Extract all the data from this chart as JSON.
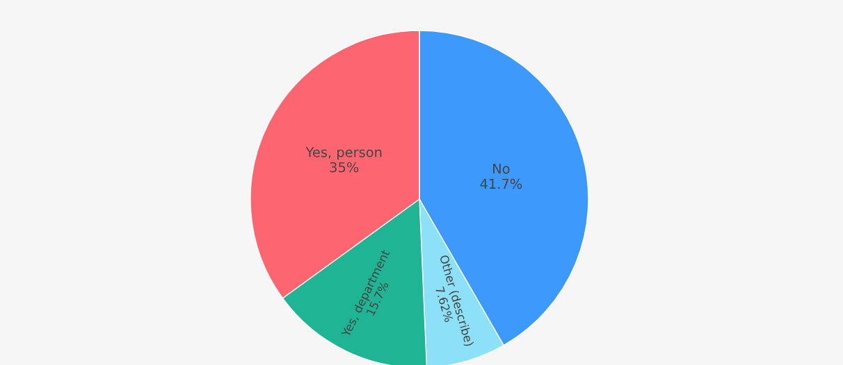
{
  "chart_data": {
    "type": "pie",
    "categories": [
      "No",
      "Other (describe)",
      "Yes, department",
      "Yes, person"
    ],
    "values": [
      41.7,
      7.62,
      15.7,
      35
    ],
    "colors": [
      "#3d9afc",
      "#8ce0f8",
      "#1fb594",
      "#fd6670"
    ],
    "value_labels": [
      "41.7%",
      "7.62%",
      "15.7%",
      "35%"
    ]
  }
}
